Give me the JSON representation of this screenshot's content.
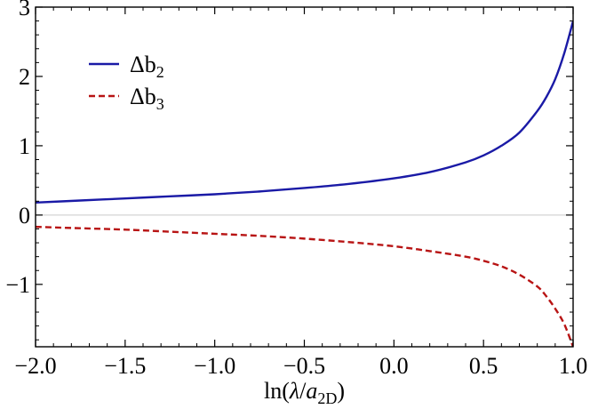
{
  "chart_data": {
    "type": "line",
    "title": "",
    "xlabel": "ln(λ/a2D)",
    "ylabel": "",
    "xlim": [
      -2.0,
      1.0
    ],
    "ylim": [
      -1.9,
      3.0
    ],
    "x_ticks": [
      {
        "value": -2.0,
        "label": "−2.0"
      },
      {
        "value": -1.5,
        "label": "−1.5"
      },
      {
        "value": -1.0,
        "label": "−1.0"
      },
      {
        "value": -0.5,
        "label": "−0.5"
      },
      {
        "value": 0.0,
        "label": "0.0"
      },
      {
        "value": 0.5,
        "label": "0.5"
      },
      {
        "value": 1.0,
        "label": "1.0"
      }
    ],
    "y_ticks": [
      {
        "value": -1,
        "label": "−1"
      },
      {
        "value": 0,
        "label": "0"
      },
      {
        "value": 1,
        "label": "1"
      },
      {
        "value": 2,
        "label": "2"
      },
      {
        "value": 3,
        "label": "3"
      }
    ],
    "legend_position": "top-left",
    "zero_line": true,
    "series": [
      {
        "name": "Δb2",
        "name_main": "Δb",
        "name_sub": "2",
        "color": "#1a1aa6",
        "style": "solid",
        "x": [
          -2.0,
          -1.75,
          -1.5,
          -1.25,
          -1.0,
          -0.75,
          -0.5,
          -0.25,
          0.0,
          0.2,
          0.4,
          0.5,
          0.6,
          0.7,
          0.8,
          0.85,
          0.9,
          0.95,
          1.0
        ],
        "y": [
          0.18,
          0.21,
          0.24,
          0.27,
          0.3,
          0.34,
          0.39,
          0.45,
          0.53,
          0.62,
          0.76,
          0.86,
          1.0,
          1.19,
          1.5,
          1.7,
          1.96,
          2.33,
          2.8
        ]
      },
      {
        "name": "Δb3",
        "name_main": "Δb",
        "name_sub": "3",
        "color": "#b81414",
        "style": "dashed",
        "x": [
          -2.0,
          -1.75,
          -1.5,
          -1.25,
          -1.0,
          -0.75,
          -0.5,
          -0.25,
          0.0,
          0.2,
          0.4,
          0.5,
          0.6,
          0.7,
          0.8,
          0.85,
          0.9,
          0.95,
          1.0
        ],
        "y": [
          -0.17,
          -0.19,
          -0.21,
          -0.24,
          -0.27,
          -0.3,
          -0.34,
          -0.39,
          -0.45,
          -0.52,
          -0.6,
          -0.66,
          -0.74,
          -0.86,
          -1.03,
          -1.17,
          -1.35,
          -1.57,
          -1.9
        ]
      }
    ]
  }
}
